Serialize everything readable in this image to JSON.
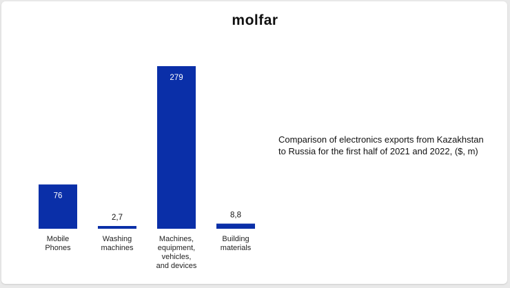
{
  "brand": {
    "logo_text": "molfar"
  },
  "chart_data": {
    "type": "bar",
    "title": "Comparison of electronics exports from Kazakhstan to Russia for the first half of 2021 and 2022, ($, m)",
    "categories": [
      [
        "Mobile",
        "Phones"
      ],
      [
        "Washing",
        "machines"
      ],
      [
        "Machines,",
        "equipment,",
        "vehicles,",
        "and devices"
      ],
      [
        "Building",
        "materials"
      ]
    ],
    "values": [
      76,
      2.7,
      279,
      8.8
    ],
    "value_labels": [
      "76",
      "2,7",
      "279",
      "8,8"
    ],
    "xlabel": "",
    "ylabel": "",
    "ylim": [
      0,
      279
    ],
    "grid": false,
    "legend": "none",
    "colors": {
      "bar": "#0a2fa8",
      "label_inside": "#ffffff",
      "label_outside": "#111111"
    }
  }
}
